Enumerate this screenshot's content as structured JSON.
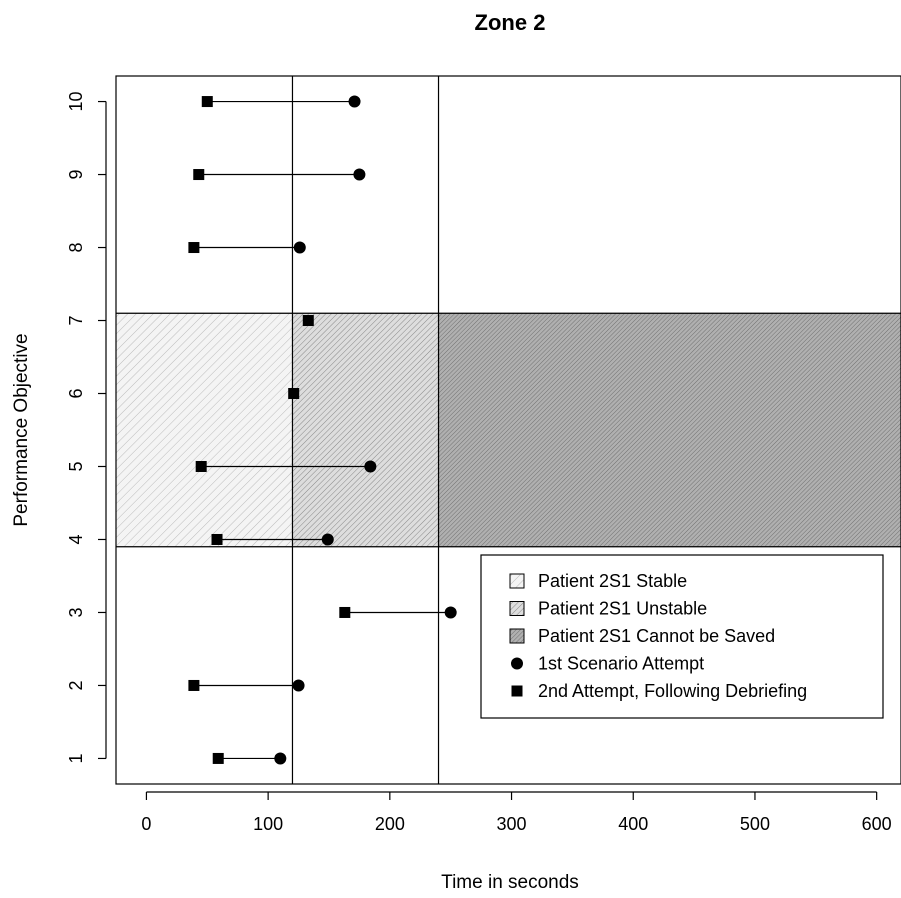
{
  "chart_data": {
    "type": "scatter",
    "title": "Zone 2",
    "xlabel": "Time in seconds",
    "ylabel": "Performance Objective",
    "xlim": [
      -25,
      620
    ],
    "ylim": [
      0.65,
      10.35
    ],
    "x_ticks": [
      "0",
      "100",
      "200",
      "300",
      "400",
      "500",
      "600"
    ],
    "y_ticks": [
      "1",
      "2",
      "3",
      "4",
      "5",
      "6",
      "7",
      "8",
      "9",
      "10"
    ],
    "grid": false,
    "legend_position": "bottom-right",
    "vertical_lines": [
      120,
      240
    ],
    "zones": [
      {
        "label": "Patient 2S1 Stable",
        "x_range": [
          -25,
          120
        ],
        "y_range": [
          3.9,
          7.1
        ],
        "pattern": "light-hatch"
      },
      {
        "label": "Patient 2S1 Unstable",
        "x_range": [
          120,
          240
        ],
        "y_range": [
          3.9,
          7.1
        ],
        "pattern": "medium-hatch"
      },
      {
        "label": "Patient 2S1 Cannot be Saved",
        "x_range": [
          240,
          620
        ],
        "y_range": [
          3.9,
          7.1
        ],
        "pattern": "dense-hatch"
      }
    ],
    "series": [
      {
        "name": "1st Scenario Attempt",
        "marker": "circle",
        "points": [
          {
            "objective": 1,
            "time": 110
          },
          {
            "objective": 2,
            "time": 125
          },
          {
            "objective": 3,
            "time": 250
          },
          {
            "objective": 4,
            "time": 149
          },
          {
            "objective": 5,
            "time": 184
          },
          {
            "objective": 8,
            "time": 126
          },
          {
            "objective": 9,
            "time": 175
          },
          {
            "objective": 10,
            "time": 171
          }
        ]
      },
      {
        "name": "2nd Attempt, Following Debriefing",
        "marker": "square",
        "points": [
          {
            "objective": 1,
            "time": 59
          },
          {
            "objective": 2,
            "time": 39
          },
          {
            "objective": 3,
            "time": 163
          },
          {
            "objective": 4,
            "time": 58
          },
          {
            "objective": 5,
            "time": 45
          },
          {
            "objective": 6,
            "time": 121
          },
          {
            "objective": 7,
            "time": 133
          },
          {
            "objective": 8,
            "time": 39
          },
          {
            "objective": 9,
            "time": 43
          },
          {
            "objective": 10,
            "time": 50
          }
        ]
      }
    ],
    "legend": [
      {
        "label": "Patient 2S1 Stable",
        "symbol": "light-hatch-box"
      },
      {
        "label": "Patient 2S1 Unstable",
        "symbol": "medium-hatch-box"
      },
      {
        "label": "Patient 2S1 Cannot be Saved",
        "symbol": "dense-hatch-box"
      },
      {
        "label": "1st Scenario Attempt",
        "symbol": "circle"
      },
      {
        "label": "2nd Attempt, Following Debriefing",
        "symbol": "square"
      }
    ]
  }
}
